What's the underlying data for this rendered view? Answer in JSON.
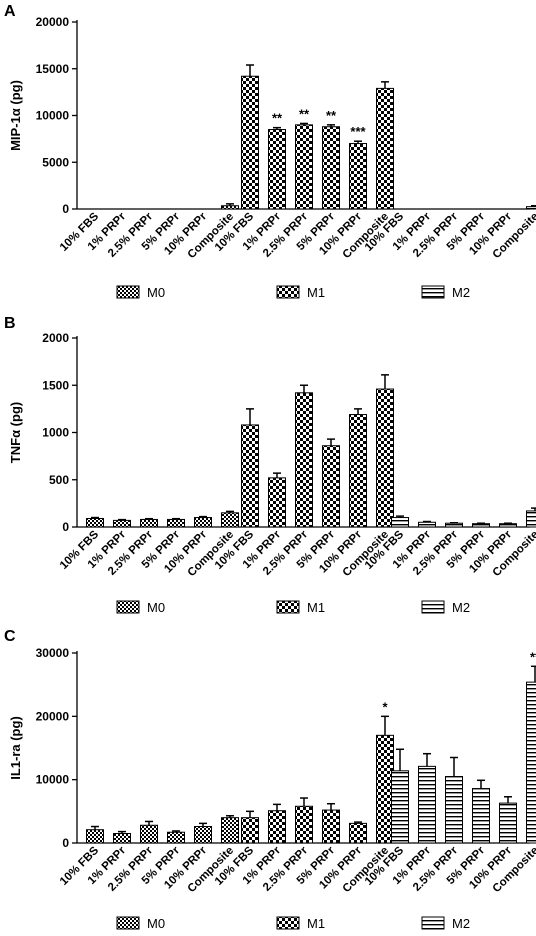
{
  "categories": [
    "10% FBS",
    "1% PRPr",
    "2.5% PRPr",
    "5% PRPr",
    "10% PRPr",
    "Composite"
  ],
  "legend": [
    {
      "name": "M0",
      "pattern": "fine-check"
    },
    {
      "name": "M1",
      "pattern": "coarse-check"
    },
    {
      "name": "M2",
      "pattern": "horizontal-stripes"
    }
  ],
  "chart_data": [
    {
      "type": "bar",
      "panel": "A",
      "ylabel": "MIP-1α (pg)",
      "ylim": [
        0,
        20000
      ],
      "yticks": [
        0,
        5000,
        10000,
        15000,
        20000
      ],
      "series": [
        {
          "name": "M0",
          "values": [
            0,
            0,
            0,
            0,
            0,
            350
          ],
          "errors": [
            0,
            0,
            0,
            0,
            0,
            200
          ],
          "sig": [
            "",
            "",
            "",
            "",
            "",
            ""
          ]
        },
        {
          "name": "M1",
          "values": [
            14200,
            8500,
            9000,
            8800,
            7000,
            12900
          ],
          "errors": [
            1200,
            200,
            150,
            200,
            250,
            700
          ],
          "sig": [
            "",
            "**",
            "**",
            "**",
            "***",
            ""
          ]
        },
        {
          "name": "M2",
          "values": [
            0,
            0,
            0,
            0,
            0,
            250
          ],
          "errors": [
            0,
            0,
            0,
            0,
            0,
            100
          ],
          "sig": [
            "",
            "",
            "",
            "",
            "",
            ""
          ]
        }
      ]
    },
    {
      "type": "bar",
      "panel": "B",
      "ylabel": "TNFα (pg)",
      "ylim": [
        0,
        2000
      ],
      "yticks": [
        0,
        500,
        1000,
        1500,
        2000
      ],
      "series": [
        {
          "name": "M0",
          "values": [
            90,
            70,
            80,
            80,
            100,
            150
          ],
          "errors": [
            10,
            8,
            8,
            8,
            10,
            15
          ],
          "sig": [
            "",
            "",
            "",
            "",
            "",
            ""
          ]
        },
        {
          "name": "M1",
          "values": [
            1080,
            520,
            1420,
            860,
            1190,
            1460
          ],
          "errors": [
            170,
            50,
            80,
            70,
            60,
            150
          ],
          "sig": [
            "",
            "",
            "",
            "",
            "",
            ""
          ]
        },
        {
          "name": "M2",
          "values": [
            100,
            50,
            40,
            35,
            35,
            170
          ],
          "errors": [
            15,
            8,
            5,
            5,
            5,
            30
          ],
          "sig": [
            "",
            "",
            "",
            "",
            "",
            ""
          ]
        }
      ]
    },
    {
      "type": "bar",
      "panel": "C",
      "ylabel": "IL1-ra (pg)",
      "ylim": [
        0,
        30000
      ],
      "yticks": [
        0,
        10000,
        20000,
        30000
      ],
      "series": [
        {
          "name": "M0",
          "values": [
            2100,
            1500,
            2800,
            1700,
            2600,
            4000
          ],
          "errors": [
            500,
            300,
            600,
            200,
            500,
            300
          ],
          "sig": [
            "",
            "",
            "",
            "",
            "",
            ""
          ]
        },
        {
          "name": "M1",
          "values": [
            4000,
            5100,
            5800,
            5200,
            3100,
            17000
          ],
          "errors": [
            1000,
            1000,
            1300,
            1000,
            200,
            3000
          ],
          "sig": [
            "",
            "",
            "",
            "",
            "",
            "*"
          ]
        },
        {
          "name": "M2",
          "values": [
            11400,
            12100,
            10500,
            8600,
            6300,
            25400
          ],
          "errors": [
            3400,
            2000,
            3000,
            1300,
            1000,
            2500
          ],
          "sig": [
            "",
            "",
            "",
            "",
            "",
            "**"
          ]
        }
      ]
    }
  ]
}
